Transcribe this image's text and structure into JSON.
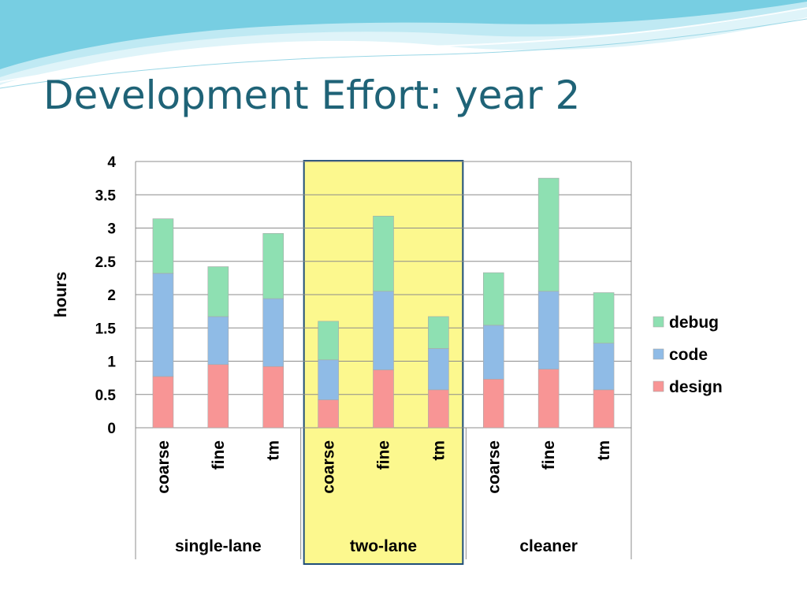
{
  "slide": {
    "title": "Development Effort: year 2"
  },
  "colors": {
    "title": "#1f6377",
    "highlight_fill": "#fcf88e",
    "highlight_border": "#1f4e79",
    "wave_dark": "#5fc4dc",
    "wave_light": "#bfe9f3"
  },
  "chart_data": {
    "type": "bar",
    "stacked": true,
    "title": "",
    "ylabel": "hours",
    "xlabel": "",
    "ylim": [
      0,
      4
    ],
    "yticks": [
      "0",
      "0.5",
      "1",
      "1.5",
      "2",
      "2.5",
      "3",
      "3.5",
      "4"
    ],
    "grid": true,
    "legend_position": "right",
    "groups": [
      {
        "name": "single-lane",
        "categories": [
          "coarse",
          "fine",
          "tm"
        ],
        "highlighted": false
      },
      {
        "name": "two-lane",
        "categories": [
          "coarse",
          "fine",
          "tm"
        ],
        "highlighted": true
      },
      {
        "name": "cleaner",
        "categories": [
          "coarse",
          "fine",
          "tm"
        ],
        "highlighted": false
      }
    ],
    "series": [
      {
        "name": "design",
        "color": "#f89595",
        "values": [
          0.77,
          0.95,
          0.92,
          0.42,
          0.87,
          0.57,
          0.73,
          0.88,
          0.57
        ]
      },
      {
        "name": "code",
        "color": "#8fbbe6",
        "values": [
          1.55,
          0.72,
          1.02,
          0.6,
          1.18,
          0.62,
          0.81,
          1.17,
          0.7
        ]
      },
      {
        "name": "debug",
        "color": "#8ee0b2",
        "values": [
          0.82,
          0.75,
          0.98,
          0.58,
          1.13,
          0.48,
          0.79,
          1.7,
          0.76
        ]
      }
    ],
    "legend_order": [
      "debug",
      "code",
      "design"
    ]
  }
}
